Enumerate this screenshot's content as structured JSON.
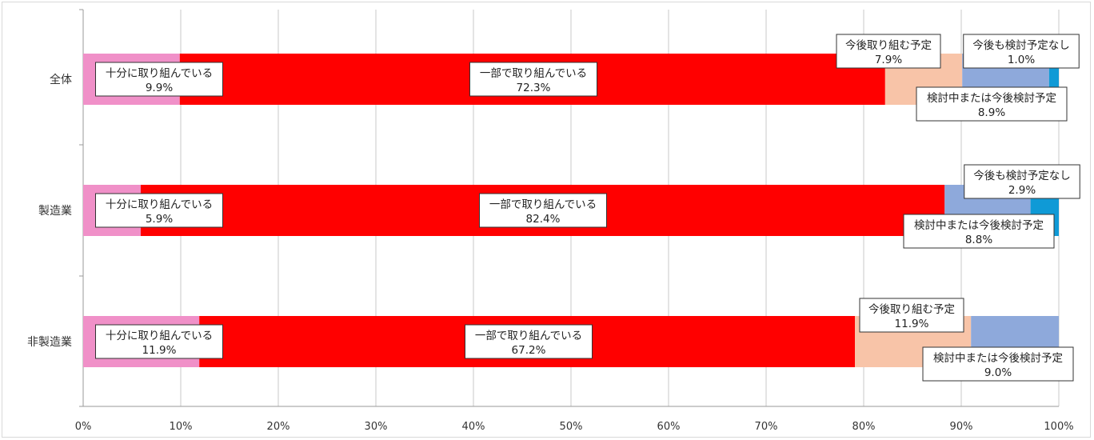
{
  "chart_data": {
    "type": "bar",
    "stacked": true,
    "orientation": "horizontal",
    "title": "",
    "xlabel": "",
    "ylabel": "",
    "xlim": [
      0,
      100
    ],
    "x_ticks": [
      "0%",
      "10%",
      "20%",
      "30%",
      "40%",
      "50%",
      "60%",
      "70%",
      "80%",
      "90%",
      "100%"
    ],
    "grid": "vertical",
    "legend": "none",
    "categories": [
      "全体",
      "製造業",
      "非製造業"
    ],
    "series": [
      {
        "name": "十分に取り組んでいる",
        "color": "#f090c8",
        "values": [
          9.9,
          5.9,
          11.9
        ]
      },
      {
        "name": "一部で取り組んでいる",
        "color": "#ff0000",
        "values": [
          72.3,
          82.4,
          67.2
        ]
      },
      {
        "name": "今後取り組む予定",
        "color": "#f8c4a8",
        "values": [
          7.9,
          0,
          11.9
        ]
      },
      {
        "name": "検討中または今後検討予定",
        "color": "#8ea9db",
        "values": [
          8.9,
          8.8,
          9.0
        ]
      },
      {
        "name": "今後も検討予定なし",
        "color": "#0f9ad6",
        "values": [
          1.0,
          2.9,
          0
        ]
      }
    ],
    "data_labels": [
      [
        {
          "series": 0,
          "text": "十分に取り組んでいる",
          "value": "9.9%"
        },
        {
          "series": 1,
          "text": "一部で取り組んでいる",
          "value": "72.3%"
        },
        {
          "series": 2,
          "text": "今後取り組む予定",
          "value": "7.9%"
        },
        {
          "series": 3,
          "text": "検討中または今後検討予定",
          "value": "8.9%"
        },
        {
          "series": 4,
          "text": "今後も検討予定なし",
          "value": "1.0%"
        }
      ],
      [
        {
          "series": 0,
          "text": "十分に取り組んでいる",
          "value": "5.9%"
        },
        {
          "series": 1,
          "text": "一部で取り組んでいる",
          "value": "82.4%"
        },
        {
          "series": 3,
          "text": "検討中または今後検討予定",
          "value": "8.8%"
        },
        {
          "series": 4,
          "text": "今後も検討予定なし",
          "value": "2.9%"
        }
      ],
      [
        {
          "series": 0,
          "text": "十分に取り組んでいる",
          "value": "11.9%"
        },
        {
          "series": 1,
          "text": "一部で取り組んでいる",
          "value": "67.2%"
        },
        {
          "series": 2,
          "text": "今後取り組む予定",
          "value": "11.9%"
        },
        {
          "series": 3,
          "text": "検討中または今後検討予定",
          "value": "9.0%"
        }
      ]
    ]
  }
}
